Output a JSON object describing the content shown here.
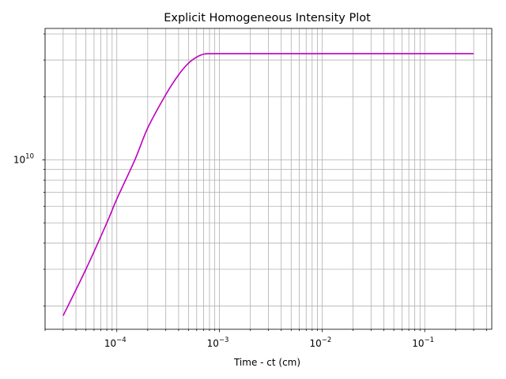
{
  "chart_data": {
    "type": "line",
    "title": "Explicit Homogeneous Intensity Plot",
    "xlabel": "Time - ct (cm)",
    "ylabel": "",
    "xscale": "log",
    "yscale": "log",
    "xlim": [
      2e-05,
      0.45
    ],
    "ylim": [
      1550000000.0,
      42500000000.0
    ],
    "grid": "major and minor",
    "x_ticks": [
      {
        "value": 0.0001,
        "base": "10",
        "exp": "−4"
      },
      {
        "value": 0.001,
        "base": "10",
        "exp": "−3"
      },
      {
        "value": 0.01,
        "base": "10",
        "exp": "−2"
      },
      {
        "value": 0.1,
        "base": "10",
        "exp": "−1"
      }
    ],
    "y_ticks": [
      {
        "value": 10000000000.0,
        "base": "10",
        "exp": "10"
      }
    ],
    "colors": {
      "line": "#bf00bf",
      "grid": "#b0b0b0",
      "axes": "#000000"
    },
    "series": [
      {
        "color": "#bf00bf",
        "x": [
          3e-05,
          5e-05,
          8e-05,
          0.0001,
          0.00015,
          0.0002,
          0.0003,
          0.0004,
          0.0005,
          0.0006,
          0.0007,
          0.0008,
          0.001,
          0.01,
          0.1,
          0.3
        ],
        "y": [
          1800000000.0,
          3000000000.0,
          5000000000.0,
          6500000000.0,
          10000000000.0,
          14200000000.0,
          20500000000.0,
          25500000000.0,
          29000000000.0,
          31000000000.0,
          32000000000.0,
          32200000000.0,
          32200000000.0,
          32200000000.0,
          32200000000.0,
          32200000000.0
        ]
      }
    ]
  }
}
